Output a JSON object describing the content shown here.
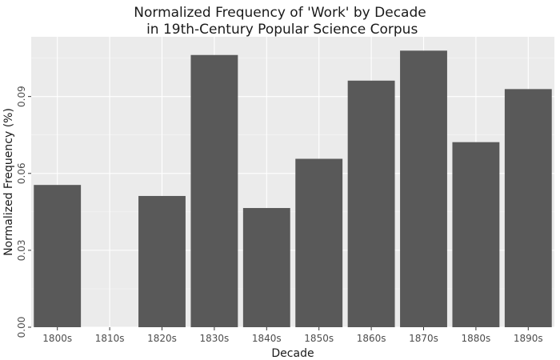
{
  "chart_data": {
    "type": "bar",
    "title_lines": [
      "Normalized Frequency of 'Work' by Decade",
      " in 19th-Century Popular Science Corpus"
    ],
    "xlabel": "Decade",
    "ylabel": "Normalized Frequency (%)",
    "categories": [
      "1800s",
      "1810s",
      "1820s",
      "1830s",
      "1840s",
      "1850s",
      "1860s",
      "1870s",
      "1880s",
      "1890s"
    ],
    "values": [
      0.0555,
      0,
      0.0512,
      0.1062,
      0.0465,
      0.0657,
      0.0962,
      0.1079,
      0.0722,
      0.0929
    ],
    "ylim": [
      0,
      0.1133
    ],
    "yticks": [
      0,
      0.03,
      0.06,
      0.09
    ],
    "ytick_labels": [
      "0.00",
      "0.03",
      "0.06",
      "0.09"
    ],
    "grid": true,
    "legend": "none",
    "colors": {
      "bar": "#595959",
      "panel": "#ebebeb",
      "grid_major": "#ffffff",
      "grid_minor": "#f5f5f5"
    }
  }
}
